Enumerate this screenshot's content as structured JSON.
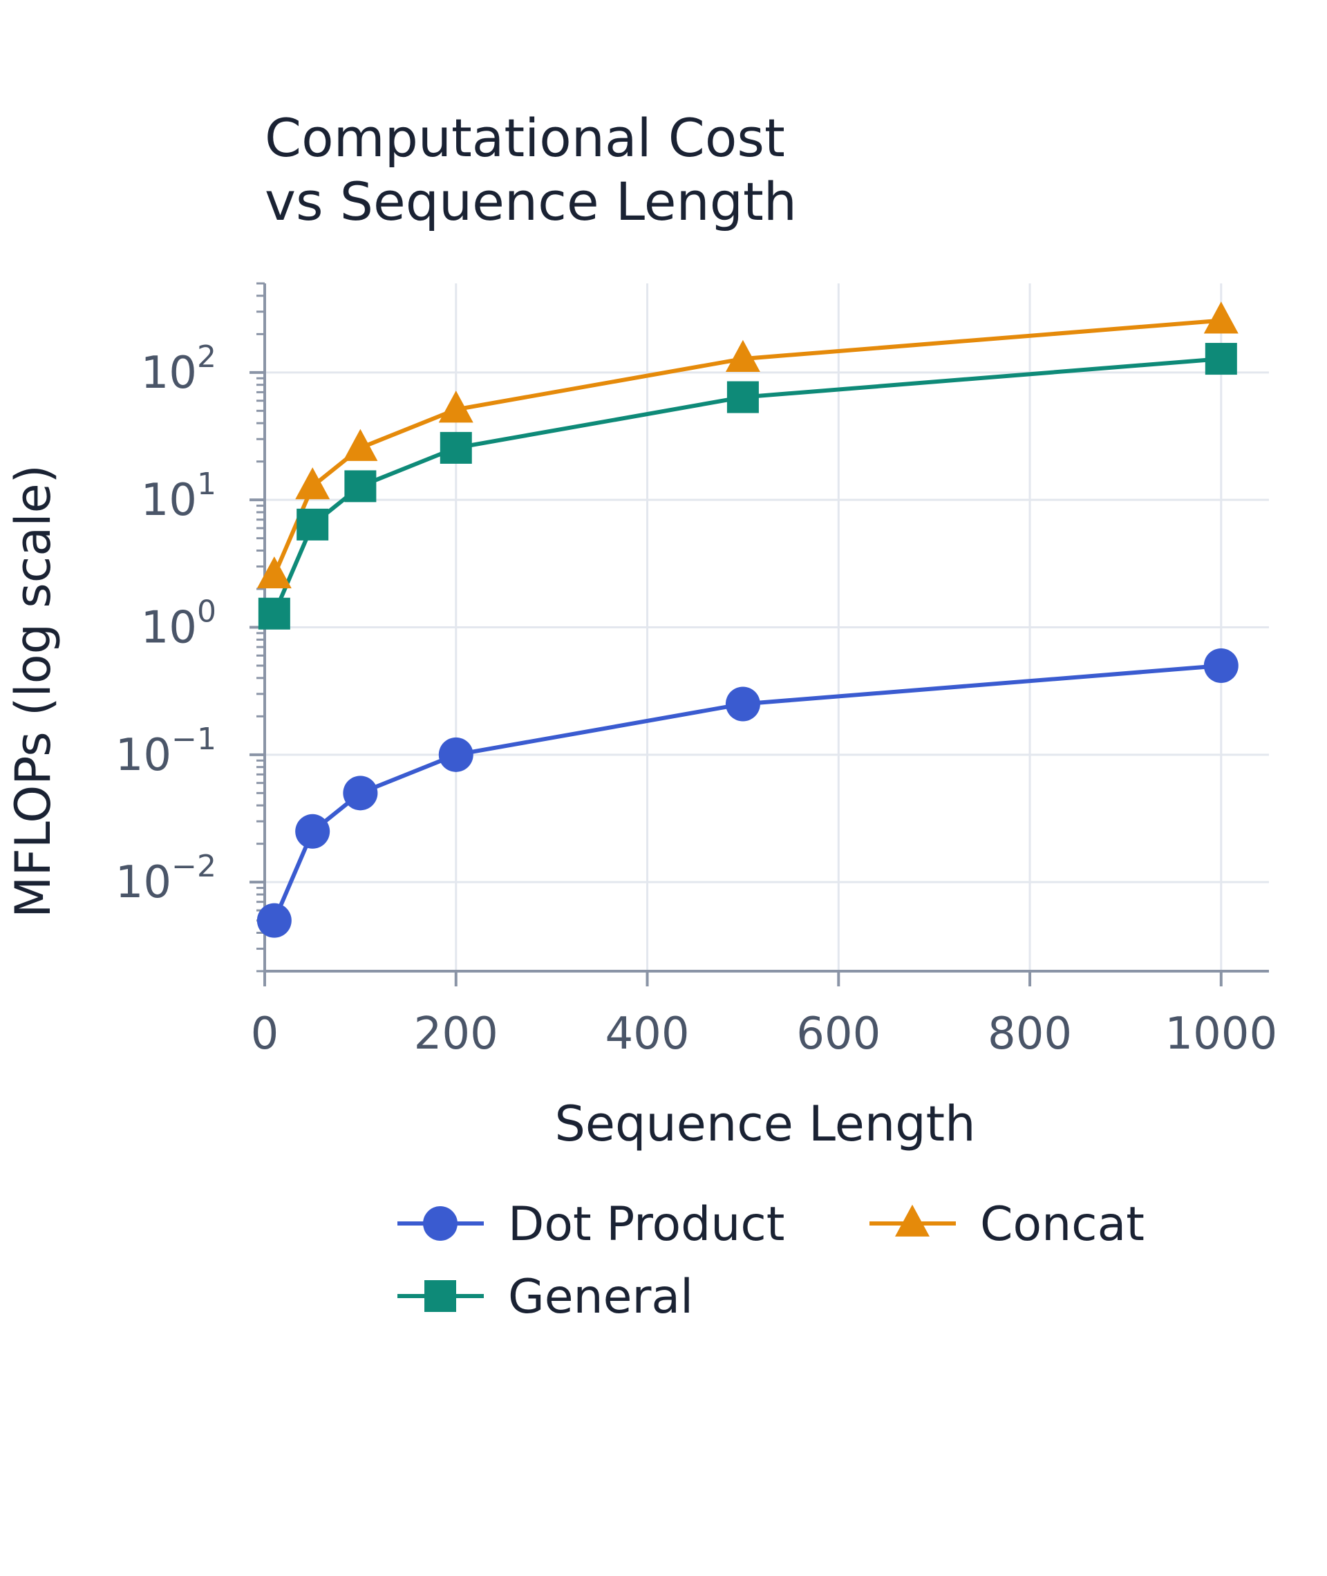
{
  "chart_data": {
    "type": "line",
    "title_lines": [
      "Computational Cost",
      "vs Sequence Length"
    ],
    "xlabel": "Sequence Length",
    "ylabel": "MFLOPs (log scale)",
    "y_scale": "log",
    "grid": true,
    "legend_position": "bottom",
    "x_range": [
      0,
      1050
    ],
    "y_range": [
      0.002,
      500
    ],
    "x_ticks": [
      0,
      200,
      400,
      600,
      800,
      1000
    ],
    "x_tick_labels": [
      "0",
      "200",
      "400",
      "600",
      "800",
      "1000"
    ],
    "y_ticks": [
      0.01,
      0.1,
      1,
      10,
      100
    ],
    "y_tick_labels": [
      {
        "base": "10",
        "exp": "−2"
      },
      {
        "base": "10",
        "exp": "−1"
      },
      {
        "base": "10",
        "exp": "0"
      },
      {
        "base": "10",
        "exp": "1"
      },
      {
        "base": "10",
        "exp": "2"
      }
    ],
    "x": [
      10,
      50,
      100,
      200,
      500,
      1000
    ],
    "series": [
      {
        "name": "Dot Product",
        "marker": "circle",
        "color": "#3a5bd0",
        "values": [
          0.005,
          0.025,
          0.05,
          0.1,
          0.25,
          0.5
        ]
      },
      {
        "name": "General",
        "marker": "square",
        "color": "#0e8a78",
        "values": [
          1.28,
          6.4,
          12.8,
          25.6,
          64,
          128
        ]
      },
      {
        "name": "Concat",
        "marker": "triangle",
        "color": "#e58a0a",
        "values": [
          2.56,
          12.8,
          25.6,
          51.2,
          128,
          256
        ]
      }
    ]
  }
}
